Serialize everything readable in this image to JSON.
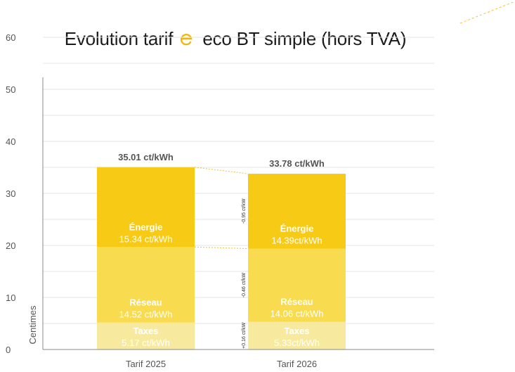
{
  "title": {
    "before": "Evolution tarif",
    "after": "eco BT simple (hors TVA)"
  },
  "colors": {
    "energie": "#F7CB15",
    "reseau": "#F8DB4E",
    "taxes": "#F7EA9F",
    "axis": "#888888",
    "grid": "#E6E6E6",
    "logo": "#F2B705"
  },
  "chart_data": {
    "type": "bar",
    "stacked": true,
    "categories": [
      "Tarif 2025",
      "Tarif 2026"
    ],
    "ylabel": "Centimes",
    "ylim": [
      0,
      60
    ],
    "yticks": [
      0,
      10,
      20,
      30,
      40,
      50,
      60
    ],
    "grid": true,
    "totals": [
      35.01,
      33.78
    ],
    "total_labels": [
      "35.01 ct/kWh",
      "33.78 ct/kWh"
    ],
    "series": [
      {
        "key": "taxes",
        "name": "Taxes",
        "values": [
          5.17,
          5.33
        ],
        "labels": [
          "5.17 ct/kWh",
          "5.33ct/kWh"
        ]
      },
      {
        "key": "reseau",
        "name": "Réseau",
        "values": [
          14.52,
          14.06
        ],
        "labels": [
          "14.52 ct/kWh",
          "14.06 ct/kWh"
        ]
      },
      {
        "key": "energie",
        "name": "Énergie",
        "values": [
          15.34,
          14.39
        ],
        "labels": [
          "15.34 ct/kWh",
          "14.39ct/kWh"
        ]
      }
    ],
    "deltas": [
      {
        "series": "energie",
        "label": "-0.95 ct/kW"
      },
      {
        "series": "reseau",
        "label": "-0.46 ct/kW"
      },
      {
        "series": "taxes",
        "label": "+0.16 ct/kW"
      }
    ]
  }
}
